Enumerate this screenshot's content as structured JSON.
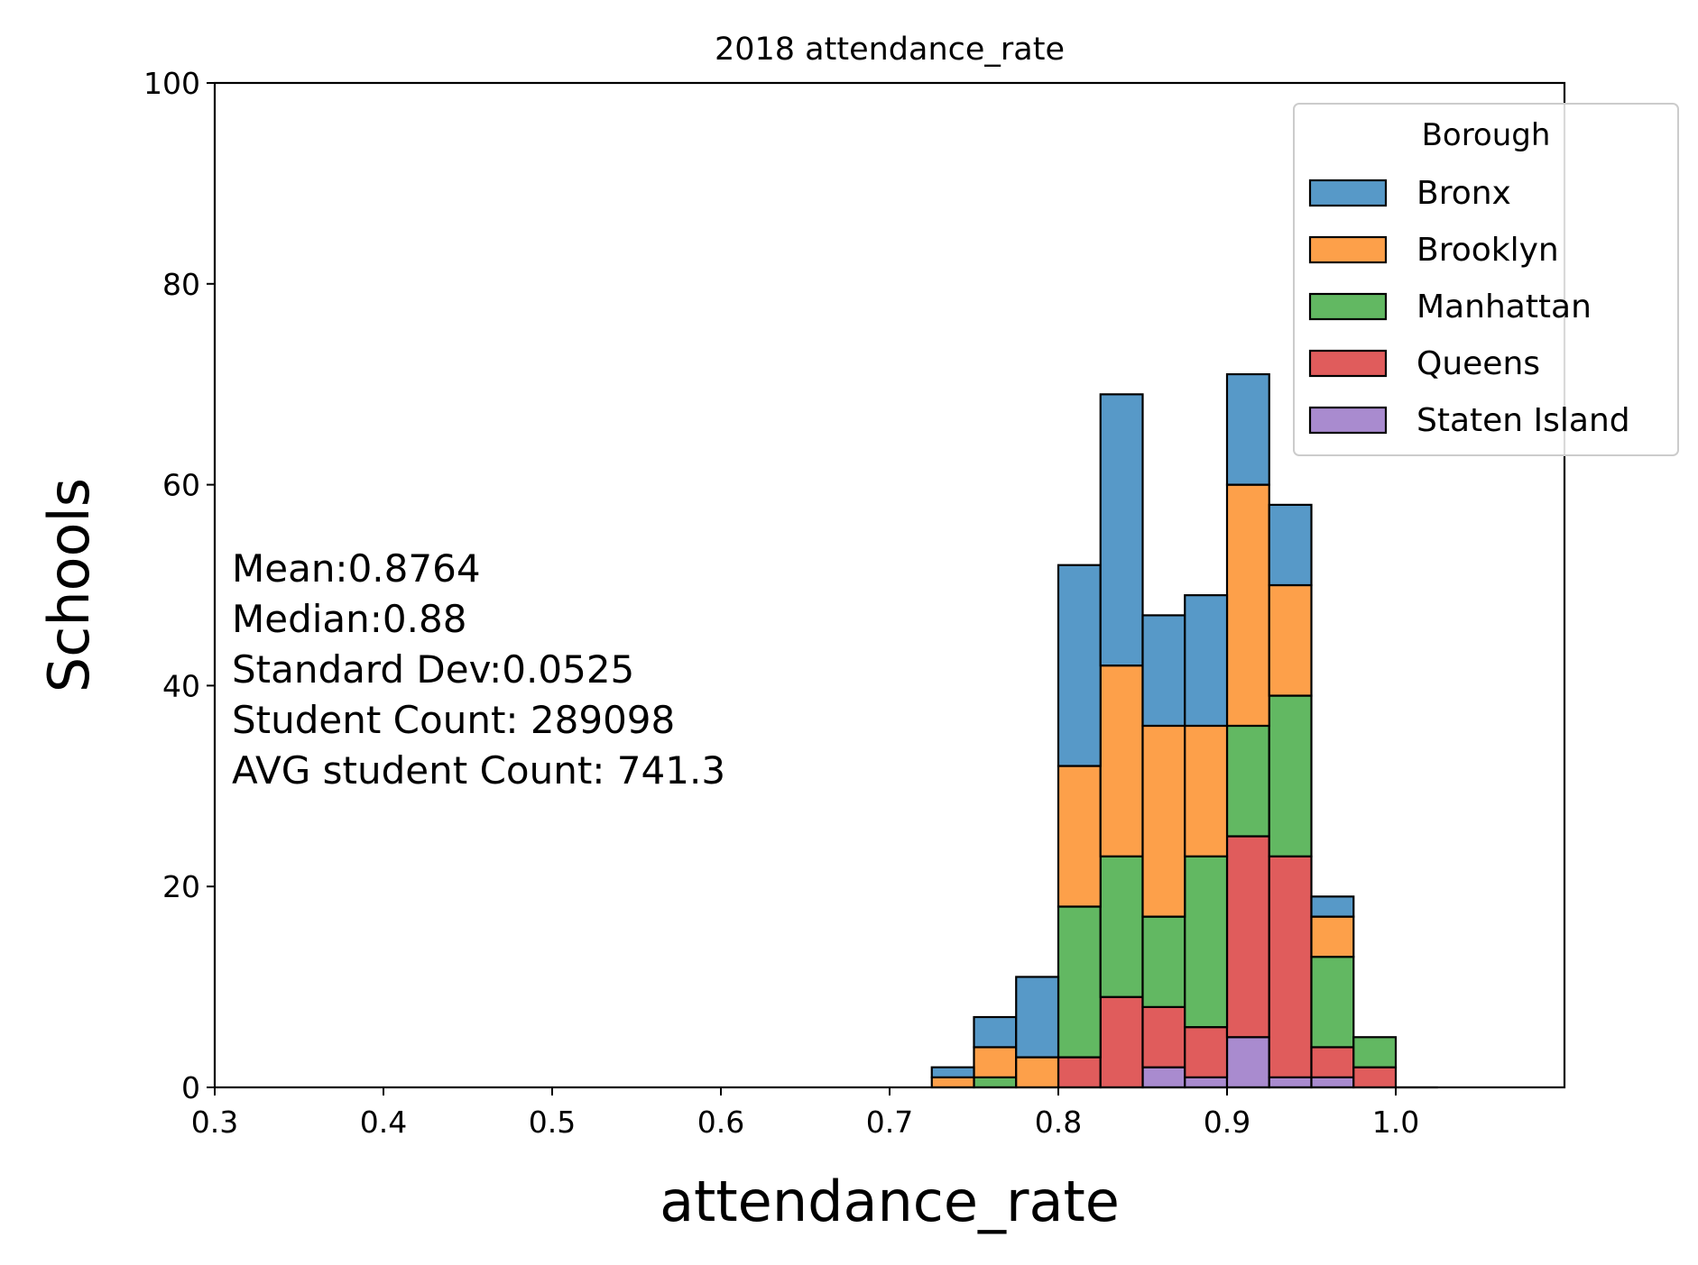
{
  "chart_data": {
    "type": "bar",
    "stacked": true,
    "title": "2018 attendance_rate",
    "xlabel": "attendance_rate",
    "ylabel": "Schools",
    "xlim": [
      0.3,
      1.1
    ],
    "ylim": [
      0,
      100
    ],
    "xticks": [
      "0.3",
      "0.4",
      "0.5",
      "0.6",
      "0.7",
      "0.8",
      "0.9",
      "1.0"
    ],
    "yticks": [
      "0",
      "20",
      "40",
      "60",
      "80",
      "100"
    ],
    "bin_edges": [
      0.725,
      0.75,
      0.775,
      0.8,
      0.825,
      0.85,
      0.875,
      0.9,
      0.925,
      0.95,
      0.975,
      1.0
    ],
    "legend": {
      "title": "Borough",
      "placement": "upper right"
    },
    "series": [
      {
        "name": "Staten Island",
        "color": "#a98bcf",
        "values": [
          0,
          0,
          0,
          0,
          0,
          2,
          1,
          5,
          1,
          1,
          0
        ]
      },
      {
        "name": "Queens",
        "color": "#e05c5c",
        "values": [
          0,
          0,
          0,
          3,
          9,
          6,
          5,
          20,
          22,
          3,
          2
        ]
      },
      {
        "name": "Manhattan",
        "color": "#62b862",
        "values": [
          0,
          1,
          0,
          15,
          14,
          9,
          17,
          11,
          16,
          9,
          3
        ]
      },
      {
        "name": "Brooklyn",
        "color": "#fda04a",
        "values": [
          1,
          3,
          3,
          14,
          19,
          19,
          13,
          24,
          11,
          4,
          0
        ]
      },
      {
        "name": "Bronx",
        "color": "#5799c8",
        "values": [
          1,
          3,
          8,
          20,
          27,
          11,
          13,
          11,
          8,
          2,
          0
        ]
      }
    ],
    "legend_order": [
      "Bronx",
      "Brooklyn",
      "Manhattan",
      "Queens",
      "Staten Island"
    ],
    "annotation_lines": [
      "Mean:0.8764",
      "Median:0.88",
      "Standard Dev:0.0525",
      "Student Count: 289098",
      "AVG student Count: 741.3"
    ]
  }
}
